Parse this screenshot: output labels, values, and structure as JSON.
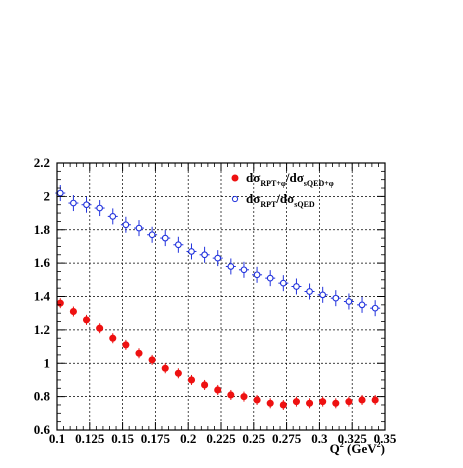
{
  "chart_data": {
    "type": "scatter",
    "x_axis": {
      "label_main": "Q",
      "label_sup": "2",
      "label_unit": " (GeV",
      "label_unit_sup": "2",
      "label_close": ")",
      "range": [
        0.1,
        0.35
      ],
      "ticks": [
        0.1,
        0.125,
        0.15,
        0.175,
        0.2,
        0.225,
        0.25,
        0.275,
        0.3,
        0.325,
        0.35
      ],
      "tick_labels": [
        "0.1",
        "0.125",
        "0.15",
        "0.175",
        "0.2",
        "0.225",
        "0.25",
        "0.275",
        "0.3",
        "0.325",
        "0.35"
      ]
    },
    "y_axis": {
      "range": [
        0.6,
        2.2
      ],
      "ticks": [
        0.6,
        0.8,
        1.0,
        1.2,
        1.4,
        1.6,
        1.8,
        2.0,
        2.2
      ],
      "tick_labels": [
        "0.6",
        "0.8",
        "1",
        "1.2",
        "1.4",
        "1.6",
        "1.8",
        "2",
        "2.2"
      ]
    },
    "grid": true,
    "legend_placement": "top-right",
    "series": [
      {
        "name": "dσRPT+φ/dσsQED+φ",
        "legend": {
          "p1": "dσ",
          "s1": "RPT+φ",
          "p2": "/dσ",
          "s2": "sQED+φ"
        },
        "color": "#ee1111",
        "marker": "filled-circle",
        "x": [
          0.1025,
          0.1125,
          0.1225,
          0.1325,
          0.1425,
          0.1525,
          0.1625,
          0.1725,
          0.1825,
          0.1925,
          0.2025,
          0.2125,
          0.2225,
          0.2325,
          0.2425,
          0.2525,
          0.2625,
          0.2725,
          0.2825,
          0.2925,
          0.3025,
          0.3125,
          0.3225,
          0.3325,
          0.3425
        ],
        "y": [
          1.36,
          1.31,
          1.26,
          1.21,
          1.15,
          1.11,
          1.06,
          1.02,
          0.97,
          0.94,
          0.9,
          0.87,
          0.84,
          0.81,
          0.8,
          0.78,
          0.76,
          0.75,
          0.77,
          0.76,
          0.77,
          0.76,
          0.77,
          0.78,
          0.78
        ]
      },
      {
        "name": "dσRPT/dσsQED",
        "legend": {
          "p1": "dσ",
          "s1": "RPT",
          "p2": "/dσ",
          "s2": "sQED"
        },
        "color": "#2233dd",
        "marker": "open-circle",
        "x": [
          0.1025,
          0.1125,
          0.1225,
          0.1325,
          0.1425,
          0.1525,
          0.1625,
          0.1725,
          0.1825,
          0.1925,
          0.2025,
          0.2125,
          0.2225,
          0.2325,
          0.2425,
          0.2525,
          0.2625,
          0.2725,
          0.2825,
          0.2925,
          0.3025,
          0.3125,
          0.3225,
          0.3325,
          0.3425
        ],
        "y": [
          2.02,
          1.96,
          1.95,
          1.93,
          1.88,
          1.83,
          1.81,
          1.77,
          1.75,
          1.71,
          1.67,
          1.65,
          1.63,
          1.58,
          1.56,
          1.53,
          1.51,
          1.48,
          1.46,
          1.43,
          1.41,
          1.39,
          1.37,
          1.35,
          1.33
        ]
      }
    ]
  }
}
